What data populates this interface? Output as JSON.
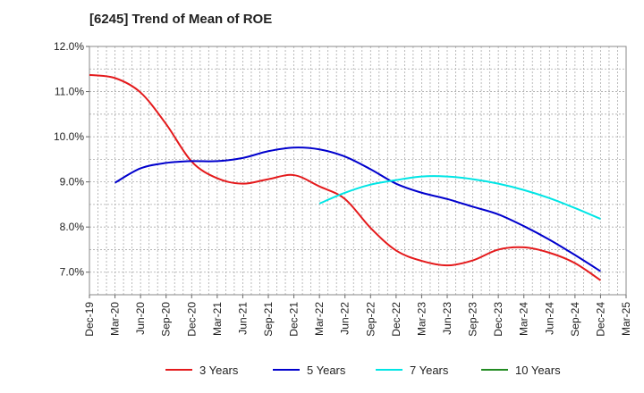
{
  "chart_data": {
    "type": "line",
    "title": "[6245]  Trend of Mean of ROE",
    "xlabel": "",
    "ylabel": "",
    "ylim": [
      6.5,
      12.0
    ],
    "yticks": [
      7.0,
      8.0,
      9.0,
      10.0,
      11.0,
      12.0
    ],
    "ytick_labels": [
      "7.0%",
      "8.0%",
      "9.0%",
      "10.0%",
      "11.0%",
      "12.0%"
    ],
    "categories": [
      "Dec-19",
      "Mar-20",
      "Jun-20",
      "Sep-20",
      "Dec-20",
      "Mar-21",
      "Jun-21",
      "Sep-21",
      "Dec-21",
      "Mar-22",
      "Jun-22",
      "Sep-22",
      "Dec-22",
      "Mar-23",
      "Jun-23",
      "Sep-23",
      "Dec-23",
      "Mar-24",
      "Jun-24",
      "Sep-24",
      "Dec-24",
      "Mar-25"
    ],
    "grid": true,
    "legend_position": "bottom",
    "series": [
      {
        "name": "3 Years",
        "color": "#e41a1c",
        "values": [
          11.37,
          11.3,
          10.98,
          10.28,
          9.45,
          9.08,
          8.96,
          9.06,
          9.15,
          8.9,
          8.62,
          7.98,
          7.48,
          7.25,
          7.15,
          7.26,
          7.5,
          7.55,
          7.43,
          7.2,
          6.82,
          null
        ]
      },
      {
        "name": "5 Years",
        "color": "#0000cd",
        "values": [
          null,
          8.98,
          9.3,
          9.42,
          9.46,
          9.46,
          9.53,
          9.68,
          9.76,
          9.72,
          9.56,
          9.28,
          8.96,
          8.76,
          8.62,
          8.45,
          8.28,
          8.02,
          7.72,
          7.38,
          7.02,
          null
        ]
      },
      {
        "name": "7 Years",
        "color": "#00e5e5",
        "values": [
          null,
          null,
          null,
          null,
          null,
          null,
          null,
          null,
          null,
          8.52,
          8.76,
          8.94,
          9.04,
          9.12,
          9.12,
          9.06,
          8.96,
          8.82,
          8.64,
          8.42,
          8.18,
          null
        ]
      },
      {
        "name": "10 Years",
        "color": "#228b22",
        "values": [
          null,
          null,
          null,
          null,
          null,
          null,
          null,
          null,
          null,
          null,
          null,
          null,
          null,
          null,
          null,
          null,
          null,
          null,
          null,
          null,
          null,
          null
        ]
      }
    ]
  }
}
